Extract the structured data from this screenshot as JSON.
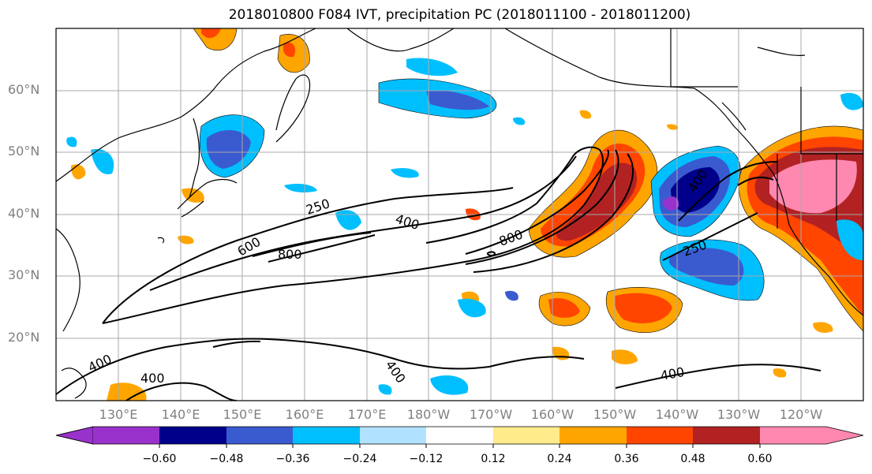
{
  "title": "2018010800 F084 IVT, precipitation PC (2018011100 - 2018011200)",
  "lat_labels": [
    "60°N",
    "50°N",
    "40°N",
    "30°N",
    "20°N"
  ],
  "lon_labels": [
    "130°E",
    "140°E",
    "150°E",
    "160°E",
    "170°E",
    "180°W",
    "170°W",
    "160°W",
    "150°W",
    "140°W",
    "130°W",
    "120°W"
  ],
  "contour_labels": [
    "250",
    "400",
    "600",
    "800",
    "800",
    "400",
    "250",
    "400",
    "400",
    "400"
  ],
  "colorbar": {
    "tick_labels": [
      "−0.60",
      "−0.48",
      "−0.36",
      "−0.24",
      "−0.12",
      "0.12",
      "0.24",
      "0.36",
      "0.48",
      "0.60"
    ],
    "colors": [
      "#9932cc",
      "#00008b",
      "#3a5bd0",
      "#00bfff",
      "#b0e2ff",
      "#ffffff",
      "#ffeb8a",
      "#ffa500",
      "#ff4500",
      "#b22222",
      "#ff88b0"
    ]
  }
}
